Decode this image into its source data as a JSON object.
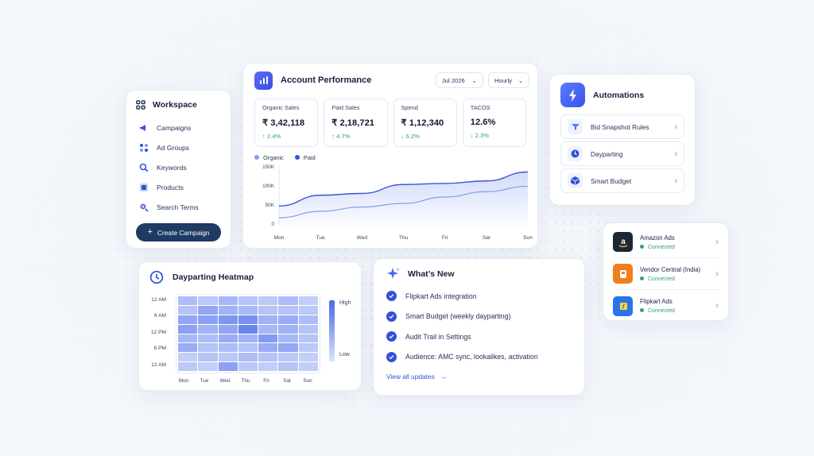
{
  "workspace": {
    "title": "Workspace",
    "items": [
      {
        "label": "Campaigns",
        "icon": "megaphone-icon"
      },
      {
        "label": "Ad Groups",
        "icon": "ad-groups-icon"
      },
      {
        "label": "Keywords",
        "icon": "search-icon"
      },
      {
        "label": "Products",
        "icon": "products-icon"
      },
      {
        "label": "Search Terms",
        "icon": "search-terms-icon"
      }
    ],
    "create_button": "Create Campaign"
  },
  "performance": {
    "title": "Account Performance",
    "month": "Jul 2026",
    "granularity": "Hourly",
    "kpis": [
      {
        "label": "Organic Sales",
        "value": "₹ 3,42,118",
        "delta": "↑ 2.4%"
      },
      {
        "label": "Paid Sales",
        "value": "₹ 2,18,721",
        "delta": "↑ 4.7%"
      },
      {
        "label": "Spend",
        "value": "₹ 1,12,340",
        "delta": "↓ 6.2%"
      },
      {
        "label": "TACOS",
        "value": "12.6%",
        "delta": "↓ 2.3%"
      }
    ]
  },
  "chart_data": {
    "type": "area",
    "categories": [
      "Mon",
      "Tue",
      "Wed",
      "Thu",
      "Fri",
      "Sat",
      "Sun"
    ],
    "series": [
      {
        "name": "Organic",
        "color": "#7fa0ef",
        "values": [
          22000,
          40000,
          52000,
          62000,
          80000,
          95000,
          110000
        ]
      },
      {
        "name": "Paid",
        "color": "#3a52d6",
        "values": [
          55000,
          85000,
          90000,
          115000,
          118000,
          125000,
          150000
        ]
      }
    ],
    "y_ticks": [
      "150K",
      "100K",
      "50K",
      "0"
    ],
    "ylim": [
      0,
      160000
    ]
  },
  "automations": {
    "title": "Automations",
    "items": [
      {
        "label": "Bid Snapshot Rules",
        "icon": "filter-icon"
      },
      {
        "label": "Dayparting",
        "icon": "clock-icon"
      },
      {
        "label": "Smart Budget",
        "icon": "box-icon"
      }
    ]
  },
  "integrations": [
    {
      "name": "Amazon Ads",
      "status": "Connected",
      "icon": "amazon-logo-icon",
      "color": "#1d2633"
    },
    {
      "name": "Vendor Central (India)",
      "status": "Connected",
      "icon": "vendor-central-logo-icon",
      "color": "#f0801f"
    },
    {
      "name": "Flipkart Ads",
      "status": "Connected",
      "icon": "flipkart-logo-icon",
      "color": "#2a74e8"
    }
  ],
  "heatmap": {
    "title": "Dayparting Heatmap",
    "y_labels": [
      "12 AM",
      "6 AM",
      "12 PM",
      "6 PM",
      "12 AM"
    ],
    "x_labels": [
      "Mon",
      "Tue",
      "Wed",
      "Thu",
      "Fri",
      "Sat",
      "Sun"
    ],
    "scale_high": "High",
    "scale_low": "Low",
    "intensity": [
      [
        0.35,
        0.25,
        0.4,
        0.3,
        0.25,
        0.35,
        0.2
      ],
      [
        0.3,
        0.55,
        0.45,
        0.4,
        0.3,
        0.3,
        0.25
      ],
      [
        0.55,
        0.6,
        0.7,
        0.75,
        0.45,
        0.5,
        0.35
      ],
      [
        0.6,
        0.45,
        0.55,
        0.85,
        0.4,
        0.45,
        0.3
      ],
      [
        0.4,
        0.35,
        0.5,
        0.45,
        0.65,
        0.4,
        0.3
      ],
      [
        0.5,
        0.3,
        0.35,
        0.3,
        0.5,
        0.55,
        0.25
      ],
      [
        0.2,
        0.3,
        0.25,
        0.35,
        0.3,
        0.25,
        0.2
      ],
      [
        0.25,
        0.2,
        0.6,
        0.25,
        0.2,
        0.3,
        0.2
      ]
    ]
  },
  "whats_new": {
    "title": "What’s New",
    "items": [
      "Flipkart Ads integration",
      "Smart Budget (weekly dayparting)",
      "Audit Trail in Settings",
      "Audience: AMC sync, lookalikes, activation"
    ],
    "link": "View all updates"
  }
}
